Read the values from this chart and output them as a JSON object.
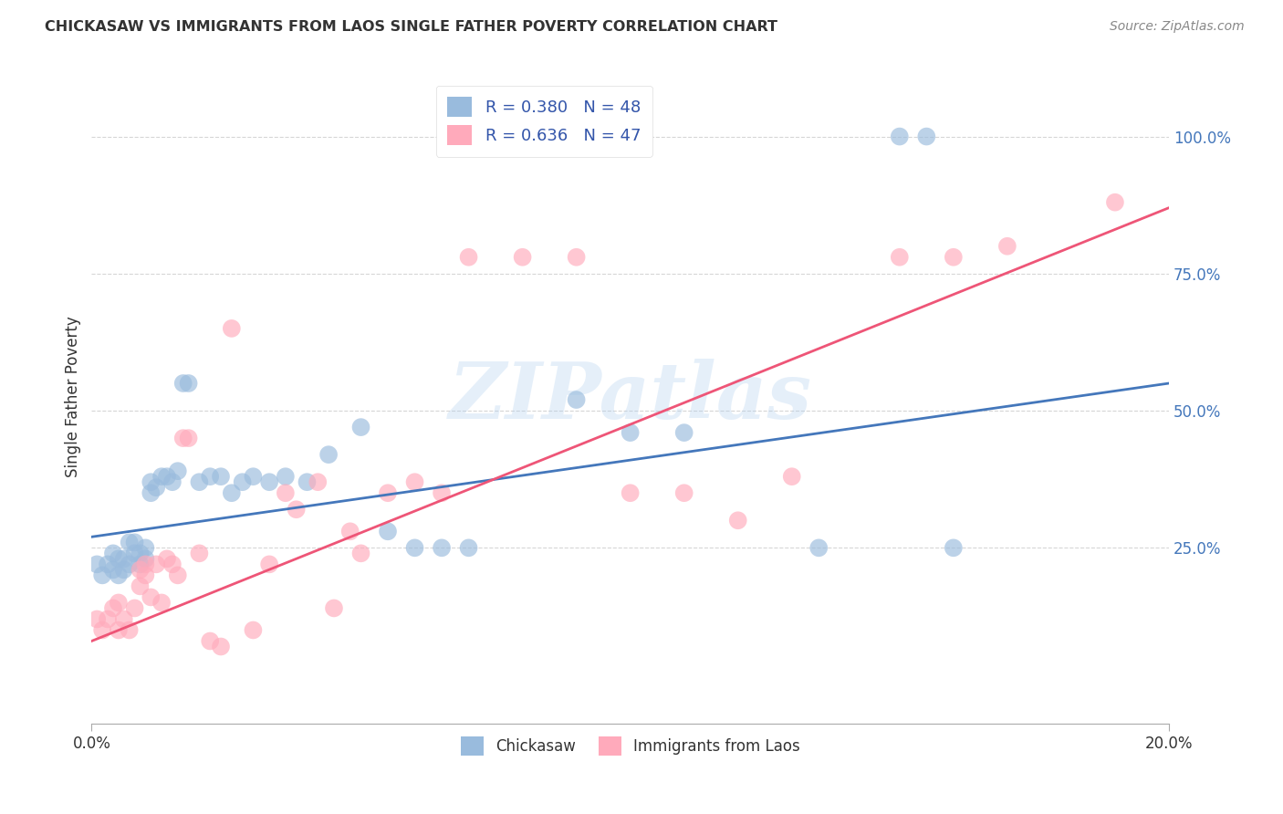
{
  "title": "CHICKASAW VS IMMIGRANTS FROM LAOS SINGLE FATHER POVERTY CORRELATION CHART",
  "source": "Source: ZipAtlas.com",
  "ylabel": "Single Father Poverty",
  "ytick_labels": [
    "100.0%",
    "75.0%",
    "50.0%",
    "25.0%"
  ],
  "ytick_values": [
    1.0,
    0.75,
    0.5,
    0.25
  ],
  "xlim": [
    0.0,
    0.2
  ],
  "ylim": [
    -0.07,
    1.12
  ],
  "watermark": "ZIPatlas",
  "legend_label1": "Chickasaw",
  "legend_label2": "Immigrants from Laos",
  "color_blue": "#99BBDD",
  "color_pink": "#FFAABB",
  "color_blue_line": "#4477BB",
  "color_pink_line": "#EE5577",
  "color_legend_text": "#3355AA",
  "color_ytick": "#4477BB",
  "blue_line_x0": 0.0,
  "blue_line_y0": 0.27,
  "blue_line_x1": 0.2,
  "blue_line_y1": 0.55,
  "pink_line_x0": 0.0,
  "pink_line_y0": 0.08,
  "pink_line_x1": 0.2,
  "pink_line_y1": 0.87,
  "blue_x": [
    0.001,
    0.002,
    0.003,
    0.004,
    0.004,
    0.005,
    0.005,
    0.006,
    0.006,
    0.007,
    0.007,
    0.008,
    0.008,
    0.009,
    0.009,
    0.01,
    0.01,
    0.011,
    0.011,
    0.012,
    0.013,
    0.014,
    0.015,
    0.016,
    0.017,
    0.018,
    0.02,
    0.022,
    0.024,
    0.026,
    0.028,
    0.03,
    0.033,
    0.036,
    0.04,
    0.044,
    0.05,
    0.055,
    0.06,
    0.065,
    0.07,
    0.09,
    0.1,
    0.11,
    0.135,
    0.15,
    0.155,
    0.16
  ],
  "blue_y": [
    0.22,
    0.2,
    0.22,
    0.21,
    0.24,
    0.2,
    0.23,
    0.21,
    0.23,
    0.22,
    0.26,
    0.24,
    0.26,
    0.22,
    0.24,
    0.23,
    0.25,
    0.35,
    0.37,
    0.36,
    0.38,
    0.38,
    0.37,
    0.39,
    0.55,
    0.55,
    0.37,
    0.38,
    0.38,
    0.35,
    0.37,
    0.38,
    0.37,
    0.38,
    0.37,
    0.42,
    0.47,
    0.28,
    0.25,
    0.25,
    0.25,
    0.52,
    0.46,
    0.46,
    0.25,
    1.0,
    1.0,
    0.25
  ],
  "pink_x": [
    0.001,
    0.002,
    0.003,
    0.004,
    0.005,
    0.005,
    0.006,
    0.007,
    0.008,
    0.009,
    0.009,
    0.01,
    0.01,
    0.011,
    0.012,
    0.013,
    0.014,
    0.015,
    0.016,
    0.017,
    0.018,
    0.02,
    0.022,
    0.024,
    0.026,
    0.03,
    0.033,
    0.036,
    0.038,
    0.042,
    0.045,
    0.048,
    0.05,
    0.055,
    0.06,
    0.065,
    0.07,
    0.08,
    0.09,
    0.1,
    0.11,
    0.12,
    0.13,
    0.15,
    0.16,
    0.17,
    0.19
  ],
  "pink_y": [
    0.12,
    0.1,
    0.12,
    0.14,
    0.1,
    0.15,
    0.12,
    0.1,
    0.14,
    0.18,
    0.21,
    0.22,
    0.2,
    0.16,
    0.22,
    0.15,
    0.23,
    0.22,
    0.2,
    0.45,
    0.45,
    0.24,
    0.08,
    0.07,
    0.65,
    0.1,
    0.22,
    0.35,
    0.32,
    0.37,
    0.14,
    0.28,
    0.24,
    0.35,
    0.37,
    0.35,
    0.78,
    0.78,
    0.78,
    0.35,
    0.35,
    0.3,
    0.38,
    0.78,
    0.78,
    0.8,
    0.88
  ]
}
